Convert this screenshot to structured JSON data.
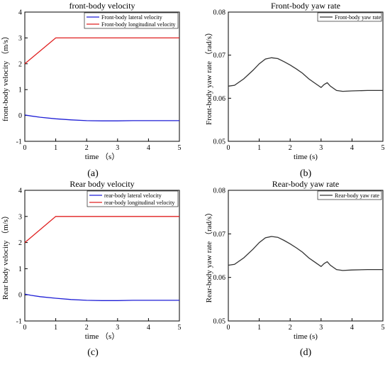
{
  "chart_data": [
    {
      "type": "line",
      "title": "front-body velocity",
      "xlabel": "time （s）",
      "ylabel": "front-body velocity （m/s）",
      "caption": "(a)",
      "xlim": [
        0,
        5
      ],
      "ylim": [
        -1,
        4
      ],
      "xticks": [
        "0",
        "1",
        "2",
        "3",
        "4",
        "5"
      ],
      "yticks": [
        "-1",
        "0",
        "1",
        "2",
        "3",
        "4"
      ],
      "legend_position": "top-right",
      "series": [
        {
          "name": "Front-body lateral velocity",
          "color": "#1f1fd6",
          "x": [
            0,
            0.2,
            0.5,
            1.0,
            1.5,
            2.0,
            2.5,
            3.0,
            3.5,
            4.0,
            4.5,
            5.0
          ],
          "y": [
            0.02,
            -0.02,
            -0.07,
            -0.13,
            -0.17,
            -0.2,
            -0.21,
            -0.21,
            -0.2,
            -0.2,
            -0.2,
            -0.2
          ]
        },
        {
          "name": "Front-body longitudinal velocity",
          "color": "#e02020",
          "x": [
            0,
            1,
            5
          ],
          "y": [
            2,
            3,
            3
          ]
        }
      ]
    },
    {
      "type": "line",
      "title": "Front-body yaw rate",
      "xlabel": "time (s)",
      "ylabel": "Front-body yaw rate （rad/s）",
      "caption": "(b)",
      "xlim": [
        0,
        5
      ],
      "ylim": [
        0.05,
        0.08
      ],
      "xticks": [
        "0",
        "1",
        "2",
        "3",
        "4",
        "5"
      ],
      "yticks": [
        "0.05",
        "0.06",
        "0.07",
        "0.08"
      ],
      "legend_position": "top-right",
      "series": [
        {
          "name": "Front-body yaw rate",
          "color": "#333333",
          "x": [
            0,
            0.2,
            0.5,
            0.8,
            1.0,
            1.2,
            1.4,
            1.6,
            1.8,
            2.0,
            2.2,
            2.4,
            2.6,
            2.8,
            3.0,
            3.1,
            3.2,
            3.3,
            3.5,
            3.7,
            4.0,
            4.5,
            5.0
          ],
          "y": [
            0.0628,
            0.063,
            0.0645,
            0.0665,
            0.068,
            0.0691,
            0.0694,
            0.0692,
            0.0685,
            0.0677,
            0.0668,
            0.0658,
            0.0645,
            0.0635,
            0.0625,
            0.0632,
            0.0636,
            0.0628,
            0.0618,
            0.0616,
            0.0617,
            0.0618,
            0.0618
          ]
        }
      ]
    },
    {
      "type": "line",
      "title": "Rear body velocity",
      "xlabel": "time （s）",
      "ylabel": "Rear body velocity （m/s）",
      "caption": "(c)",
      "xlim": [
        0,
        5
      ],
      "ylim": [
        -1,
        4
      ],
      "xticks": [
        "0",
        "1",
        "2",
        "3",
        "4",
        "5"
      ],
      "yticks": [
        "-1",
        "0",
        "1",
        "2",
        "3",
        "4"
      ],
      "legend_position": "top-right",
      "series": [
        {
          "name": "rear-body lateral velocity",
          "color": "#1f1fd6",
          "x": [
            0,
            0.2,
            0.5,
            1.0,
            1.5,
            2.0,
            2.5,
            3.0,
            3.5,
            4.0,
            4.5,
            5.0
          ],
          "y": [
            0.03,
            -0.02,
            -0.07,
            -0.13,
            -0.18,
            -0.21,
            -0.22,
            -0.22,
            -0.21,
            -0.21,
            -0.21,
            -0.21
          ]
        },
        {
          "name": "rear-body longitudinal velocity",
          "color": "#e02020",
          "x": [
            0,
            1,
            5
          ],
          "y": [
            2,
            3,
            3
          ]
        }
      ]
    },
    {
      "type": "line",
      "title": "Rear-body yaw rate",
      "xlabel": "time (s)",
      "ylabel": "Rear-body yaw rate （rad/s）",
      "caption": "(d)",
      "xlim": [
        0,
        5
      ],
      "ylim": [
        0.05,
        0.08
      ],
      "xticks": [
        "0",
        "1",
        "2",
        "3",
        "4",
        "5"
      ],
      "yticks": [
        "0.05",
        "0.06",
        "0.07",
        "0.08"
      ],
      "legend_position": "top-right",
      "series": [
        {
          "name": "Rear-body yaw rate",
          "color": "#333333",
          "x": [
            0,
            0.2,
            0.5,
            0.8,
            1.0,
            1.2,
            1.4,
            1.6,
            1.8,
            2.0,
            2.2,
            2.4,
            2.6,
            2.8,
            3.0,
            3.1,
            3.2,
            3.3,
            3.5,
            3.7,
            4.0,
            4.5,
            5.0
          ],
          "y": [
            0.0628,
            0.063,
            0.0645,
            0.0665,
            0.068,
            0.0691,
            0.0694,
            0.0692,
            0.0685,
            0.0677,
            0.0668,
            0.0658,
            0.0645,
            0.0635,
            0.0625,
            0.0632,
            0.0636,
            0.0628,
            0.0618,
            0.0616,
            0.0617,
            0.0618,
            0.0618
          ]
        }
      ]
    }
  ]
}
